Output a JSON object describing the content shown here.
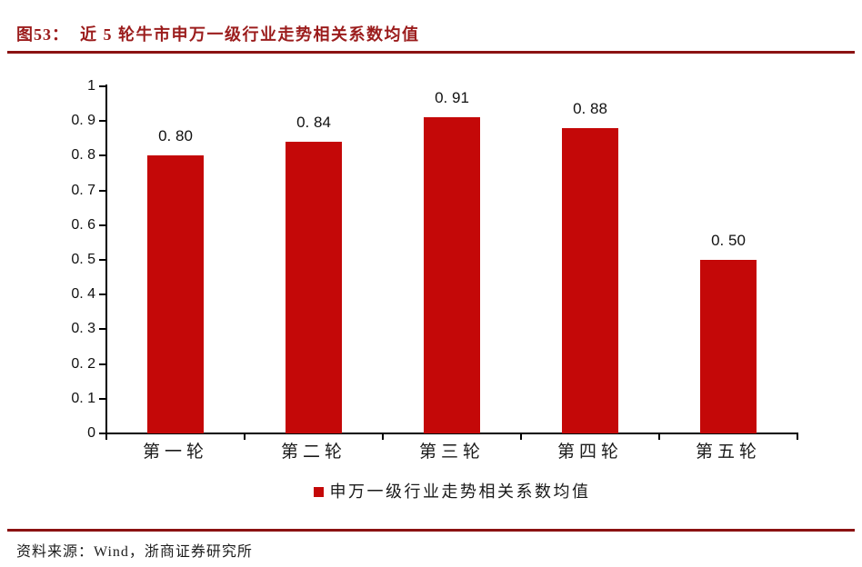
{
  "header": {
    "figure_number": "图53：",
    "title": "近 5 轮牛市申万一级行业走势相关系数均值"
  },
  "chart_data": {
    "type": "bar",
    "title": "近 5 轮牛市申万一级行业走势相关系数均值",
    "categories": [
      "第一轮",
      "第二轮",
      "第三轮",
      "第四轮",
      "第五轮"
    ],
    "values": [
      0.8,
      0.84,
      0.91,
      0.88,
      0.5
    ],
    "value_labels": [
      "0. 80",
      "0. 84",
      "0. 91",
      "0. 88",
      "0. 50"
    ],
    "xlabel": "",
    "ylabel": "",
    "ylim": [
      0,
      1
    ],
    "y_tick_values": [
      0,
      0.1,
      0.2,
      0.3,
      0.4,
      0.5,
      0.6,
      0.7,
      0.8,
      0.9,
      1
    ],
    "y_tick_labels": [
      "0",
      "0. 1",
      "0. 2",
      "0. 3",
      "0. 4",
      "0. 5",
      "0. 6",
      "0. 7",
      "0. 8",
      "0. 9",
      "1"
    ],
    "grid": false,
    "legend": {
      "label": "申万一级行业走势相关系数均值",
      "position": "bottom"
    },
    "bar_color": "#c40808"
  },
  "footer": {
    "source": "资料来源：Wind，浙商证券研究所"
  },
  "theme": {
    "bar_red": "#c40808",
    "title_red": "#9b1c1c",
    "rule_red": "#8b1212",
    "axis_black": "#000000",
    "text_color": "#1a1a1a",
    "background": "#ffffff"
  }
}
